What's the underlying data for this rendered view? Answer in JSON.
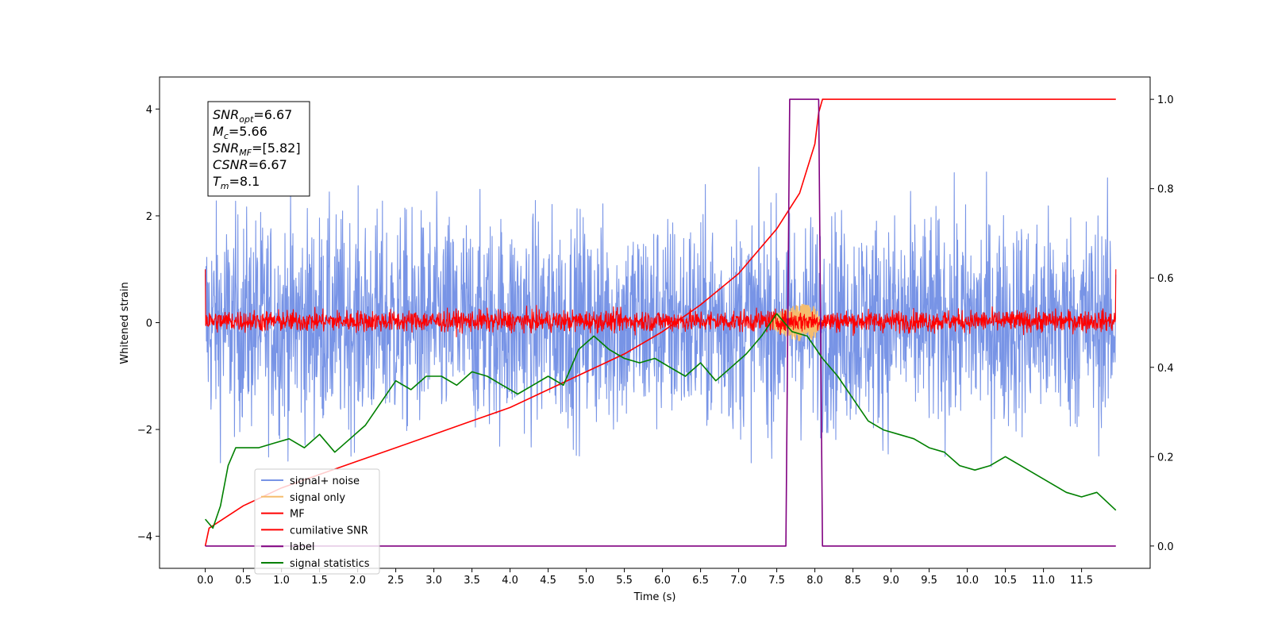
{
  "chart_data": {
    "type": "line",
    "xlabel": "Time (s)",
    "ylabel": "Whitened strain",
    "xlim": [
      -0.6,
      12.4
    ],
    "ylim": [
      -4.6,
      4.6
    ],
    "ylim_right": [
      -0.05,
      1.05
    ],
    "x_ticks": [
      0.0,
      0.5,
      1.0,
      1.5,
      2.0,
      2.5,
      3.0,
      3.5,
      4.0,
      4.5,
      5.0,
      5.5,
      6.0,
      6.5,
      7.0,
      7.5,
      8.0,
      8.5,
      9.0,
      9.5,
      10.0,
      10.5,
      11.0,
      11.5
    ],
    "x_tick_labels": [
      "0.0",
      "0.5",
      "1.0",
      "1.5",
      "2.0",
      "2.5",
      "3.0",
      "3.5",
      "4.0",
      "4.5",
      "5.0",
      "5.5",
      "6.0",
      "6.5",
      "7.0",
      "7.5",
      "8.0",
      "8.5",
      "9.0",
      "9.5",
      "10.0",
      "10.5",
      "11.0",
      "11.5"
    ],
    "y_ticks": [
      -4,
      -2,
      0,
      2,
      4
    ],
    "y_tick_labels": [
      "−4",
      "−2",
      "0",
      "2",
      "4"
    ],
    "y_right_ticks": [
      0.0,
      0.2,
      0.4,
      0.6,
      0.8,
      1.0
    ],
    "y_right_tick_labels": [
      "0.0",
      "0.2",
      "0.4",
      "0.6",
      "0.8",
      "1.0"
    ],
    "grid": false,
    "legend_placement": "lower-left",
    "annotation": [
      {
        "base": "SNR",
        "sub": "opt",
        "value": "=6.67"
      },
      {
        "base": "M",
        "sub": "c",
        "value": "=5.66"
      },
      {
        "base": "SNR",
        "sub": "MF",
        "value": "=[5.82]"
      },
      {
        "base": "CSNR",
        "sub": "",
        "value": "=6.67"
      },
      {
        "base": "T",
        "sub": "m",
        "value": "=8.1"
      }
    ],
    "series": [
      {
        "name": "signal+ noise",
        "color": "#7894e6",
        "axis": "left",
        "kind": "noise",
        "amplitude": 4.0,
        "x_range": [
          0.0,
          11.95
        ]
      },
      {
        "name": "signal only",
        "color": "#f5bd6e",
        "axis": "left",
        "kind": "chirp",
        "x": [
          7.4,
          7.6,
          7.8,
          8.0,
          8.1
        ],
        "y": [
          0.1,
          0.25,
          0.35,
          0.3,
          0.0
        ]
      },
      {
        "name": "MF",
        "color": "#ff0000",
        "axis": "left",
        "kind": "noise",
        "amplitude": 0.7,
        "x_range": [
          0.0,
          11.95
        ]
      },
      {
        "name": "cumilative SNR",
        "color": "#ff0000",
        "axis": "right",
        "x": [
          0.0,
          0.05,
          0.5,
          1.0,
          1.5,
          2.0,
          2.5,
          3.0,
          3.5,
          4.0,
          4.5,
          5.0,
          5.5,
          6.0,
          6.5,
          7.0,
          7.5,
          7.8,
          8.0,
          8.05,
          8.1,
          11.95
        ],
        "y": [
          0.0,
          0.04,
          0.09,
          0.13,
          0.16,
          0.19,
          0.22,
          0.25,
          0.28,
          0.31,
          0.35,
          0.39,
          0.43,
          0.48,
          0.54,
          0.61,
          0.71,
          0.79,
          0.9,
          0.97,
          1.0,
          1.0
        ]
      },
      {
        "name": "label",
        "color": "#800080",
        "axis": "right",
        "x": [
          0.0,
          7.62,
          7.67,
          8.05,
          8.1,
          11.95
        ],
        "y": [
          0.0,
          0.0,
          1.0,
          1.0,
          0.0,
          0.0
        ]
      },
      {
        "name": "signal statistics",
        "color": "#008000",
        "axis": "right",
        "x": [
          0.0,
          0.1,
          0.2,
          0.3,
          0.4,
          0.5,
          0.7,
          0.9,
          1.1,
          1.3,
          1.5,
          1.7,
          1.9,
          2.1,
          2.3,
          2.5,
          2.7,
          2.9,
          3.1,
          3.3,
          3.5,
          3.7,
          3.9,
          4.1,
          4.3,
          4.5,
          4.7,
          4.9,
          5.1,
          5.3,
          5.5,
          5.7,
          5.9,
          6.1,
          6.3,
          6.5,
          6.7,
          6.9,
          7.1,
          7.3,
          7.5,
          7.7,
          7.9,
          8.1,
          8.3,
          8.5,
          8.7,
          8.9,
          9.1,
          9.3,
          9.5,
          9.7,
          9.9,
          10.1,
          10.3,
          10.5,
          10.7,
          10.9,
          11.1,
          11.3,
          11.5,
          11.7,
          11.95
        ],
        "y": [
          0.06,
          0.04,
          0.09,
          0.18,
          0.22,
          0.22,
          0.22,
          0.23,
          0.24,
          0.22,
          0.25,
          0.21,
          0.24,
          0.27,
          0.32,
          0.37,
          0.35,
          0.38,
          0.38,
          0.36,
          0.39,
          0.38,
          0.36,
          0.34,
          0.36,
          0.38,
          0.36,
          0.44,
          0.47,
          0.44,
          0.42,
          0.41,
          0.42,
          0.4,
          0.38,
          0.41,
          0.37,
          0.4,
          0.43,
          0.47,
          0.52,
          0.48,
          0.47,
          0.42,
          0.38,
          0.33,
          0.28,
          0.26,
          0.25,
          0.24,
          0.22,
          0.21,
          0.18,
          0.17,
          0.18,
          0.2,
          0.18,
          0.16,
          0.14,
          0.12,
          0.11,
          0.12,
          0.08
        ]
      }
    ]
  }
}
